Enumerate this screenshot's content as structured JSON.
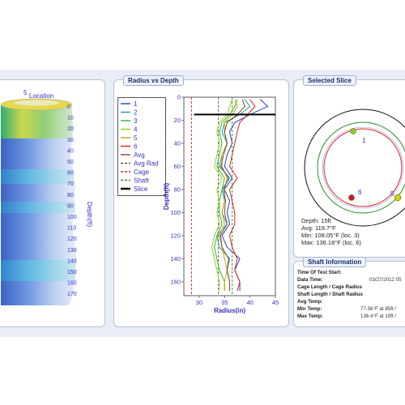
{
  "shaft_view": {
    "location_label": "Location",
    "location_tick": "5",
    "depth_axis_label": "Depth(ft)",
    "depth_ticks": [
      "0",
      "10",
      "20",
      "30",
      "40",
      "50",
      "60",
      "70",
      "80",
      "90",
      "100",
      "110",
      "120",
      "130",
      "140",
      "150",
      "160",
      "170"
    ]
  },
  "radius_panel": {
    "title": "Radius vs Depth",
    "legend": [
      {
        "label": "1",
        "color": "#1f3fd1",
        "style": "solid"
      },
      {
        "label": "2",
        "color": "#1aa0a0",
        "style": "solid"
      },
      {
        "label": "3",
        "color": "#2fb52f",
        "style": "solid"
      },
      {
        "label": "4",
        "color": "#8fd11a",
        "style": "solid"
      },
      {
        "label": "5",
        "color": "#c9a400",
        "style": "solid"
      },
      {
        "label": "6",
        "color": "#e02020",
        "style": "solid"
      },
      {
        "label": "Avg",
        "color": "#7a4a2a",
        "style": "solid"
      },
      {
        "label": "Avg Rad",
        "color": "#505050",
        "style": "dash"
      },
      {
        "label": "Cage",
        "color": "#e02020",
        "style": "dash"
      },
      {
        "label": "Shaft",
        "color": "#2a8a2a",
        "style": "dash"
      },
      {
        "label": "Slice",
        "color": "#000000",
        "style": "thick"
      }
    ]
  },
  "chart_data": {
    "type": "line",
    "xlabel": "Radius(in)",
    "ylabel": "Depth(ft)",
    "xlim": [
      27,
      45
    ],
    "ylim": [
      0,
      172
    ],
    "x_ticks": [
      30,
      35,
      40,
      45
    ],
    "y_ticks": [
      0,
      20,
      40,
      60,
      80,
      100,
      120,
      140,
      160
    ],
    "reference_lines": {
      "cage": 28.5,
      "avg_rad": 33.8,
      "shaft": 36.5
    },
    "slice_depth": 15,
    "series": [
      {
        "name": "1",
        "depth": [
          2,
          8,
          15,
          22,
          30,
          40,
          50,
          60,
          70,
          80,
          90,
          100,
          110,
          120,
          130,
          140,
          150,
          160,
          168
        ],
        "radius": [
          42,
          43.5,
          40,
          37,
          36,
          36.5,
          35.5,
          35,
          36.5,
          35,
          36,
          35.5,
          36,
          34.5,
          35.5,
          38,
          37,
          38,
          38
        ]
      },
      {
        "name": "2",
        "depth": [
          2,
          8,
          15,
          22,
          30,
          40,
          50,
          60,
          70,
          80,
          90,
          100,
          110,
          120,
          130,
          140,
          150,
          160,
          168
        ],
        "radius": [
          39,
          40,
          38,
          35,
          34.5,
          35.5,
          34.5,
          34,
          36,
          34.5,
          35,
          34.5,
          35.5,
          33.5,
          34,
          36,
          35.5,
          36,
          36
        ]
      },
      {
        "name": "3",
        "depth": [
          2,
          8,
          15,
          22,
          30,
          40,
          50,
          60,
          70,
          80,
          90,
          100,
          110,
          120,
          130,
          140,
          150,
          160,
          168
        ],
        "radius": [
          37.5,
          37,
          36,
          34.5,
          34,
          34.5,
          34,
          33.5,
          35,
          34.5,
          34,
          34,
          34.5,
          33.5,
          33,
          33.5,
          34,
          35,
          35
        ]
      },
      {
        "name": "4",
        "depth": [
          2,
          8,
          15,
          22,
          30,
          40,
          50,
          60,
          70,
          80,
          90,
          100,
          110,
          120,
          130,
          140,
          150,
          160,
          168
        ],
        "radius": [
          36.5,
          36,
          35.5,
          34,
          33.5,
          34,
          33.5,
          33,
          34.5,
          33.5,
          34,
          33.5,
          34,
          33,
          32.5,
          33,
          33.5,
          34,
          34
        ]
      },
      {
        "name": "5",
        "depth": [
          2,
          8,
          15,
          22,
          30,
          40,
          50,
          60,
          70,
          80,
          90,
          100,
          110,
          120,
          130,
          140,
          150,
          160,
          168
        ],
        "radius": [
          37,
          37.5,
          36.5,
          35,
          35,
          35.5,
          34.5,
          34.5,
          35.5,
          35,
          35,
          34.5,
          35,
          34,
          34.5,
          35,
          35.5,
          35,
          35
        ]
      },
      {
        "name": "6",
        "depth": [
          2,
          8,
          15,
          22,
          30,
          40,
          50,
          60,
          70,
          80,
          90,
          100,
          110,
          120,
          130,
          140,
          150,
          160,
          168
        ],
        "radius": [
          40,
          41,
          39.5,
          38,
          37.5,
          37,
          36.5,
          36,
          37.5,
          36,
          36.5,
          37,
          37,
          36,
          36.5,
          37.5,
          37,
          38,
          37.5
        ]
      },
      {
        "name": "Avg",
        "depth": [
          2,
          8,
          15,
          22,
          30,
          40,
          50,
          60,
          70,
          80,
          90,
          100,
          110,
          120,
          130,
          140,
          150,
          160,
          168
        ],
        "radius": [
          38.5,
          39,
          37.5,
          35.5,
          35,
          35.5,
          34.8,
          34.3,
          35.8,
          34.8,
          35.2,
          35,
          35.5,
          34.2,
          34.5,
          35.8,
          35.5,
          36,
          36
        ]
      }
    ]
  },
  "slice_panel": {
    "title": "Selected Slice",
    "marker_labels": [
      "1",
      "6",
      "5"
    ],
    "depth_line": "Depth: 15ft",
    "avg_line": "Avg: 119.7°F",
    "min_line": "Min: 108.05°F (loc. 3)",
    "max_line": "Max: 136.18°F (loc. 6)"
  },
  "info_panel": {
    "title": "Shaft Information",
    "rows": [
      {
        "label": "Time Of Test Start:",
        "value": ""
      },
      {
        "label": "Data Time:",
        "value": "03/27/2012 05"
      },
      {
        "label": "Cage Length / Cage Radius",
        "value": ""
      },
      {
        "label": "Shaft Length / Shaft Radius",
        "value": ""
      },
      {
        "label": "Avg Temp:",
        "value": ""
      },
      {
        "label": "Min Temp:",
        "value": "77.56°F at 85ft /"
      },
      {
        "label": "Max Temp:",
        "value": "136.4°F at 19ft /"
      }
    ]
  },
  "colors": {
    "panel_border": "#b8c2d6",
    "title_text": "#1c2c6e",
    "axis_text": "#3a2fbf"
  }
}
